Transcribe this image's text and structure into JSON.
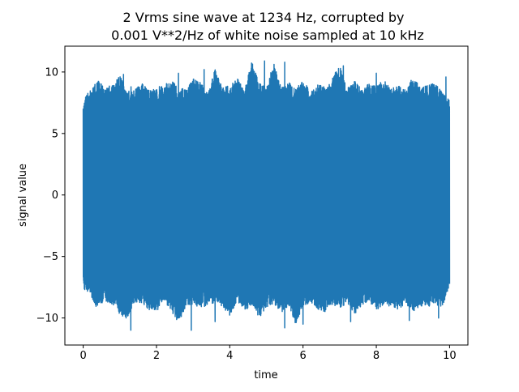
{
  "chart_data": {
    "type": "line",
    "title_line1": "2 Vrms sine wave at 1234 Hz, corrupted by",
    "title_line2": "0.001 V**2/Hz of white noise sampled at 10 kHz",
    "xlabel": "time",
    "ylabel": "signal value",
    "xlim": [
      -0.5,
      10.5
    ],
    "ylim": [
      -12.2,
      12.1
    ],
    "x_ticks": [
      0,
      2,
      4,
      6,
      8,
      10
    ],
    "x_tick_labels": [
      "0",
      "2",
      "4",
      "6",
      "8",
      "10"
    ],
    "y_ticks": [
      -10,
      -5,
      0,
      5,
      10
    ],
    "y_tick_labels": [
      "−10",
      "−5",
      "0",
      "5",
      "10"
    ],
    "grid": false,
    "legend": "none",
    "line_color": "#1f77b4",
    "series": [
      {
        "x_start": 0,
        "x_end": 10,
        "sample_rate_hz": 10000,
        "sine_amplitude": 2.828,
        "sine_freq_hz": 1234,
        "envelope_upper": [
          7.9,
          8.6,
          9.3,
          8.8,
          8.9,
          9.7,
          8.4,
          8.6,
          9.1,
          8.5,
          8.7,
          9.0,
          9.3,
          8.8,
          8.6,
          9.5,
          9.2,
          8.5,
          10.2,
          8.7,
          8.9,
          9.5,
          8.5,
          10.9,
          9.1,
          8.7,
          10.8,
          8.9,
          9.2,
          8.6,
          9.4,
          8.5,
          9.0,
          8.8,
          9.6,
          10.5,
          8.7,
          9.3,
          8.6,
          9.1,
          8.8,
          9.4,
          8.6,
          9.0,
          8.5,
          9.7,
          8.8,
          8.9,
          9.2,
          8.6,
          7.8
        ],
        "envelope_lower": [
          -7.6,
          -8.1,
          -9.4,
          -8.6,
          -8.9,
          -9.7,
          -10.1,
          -8.7,
          -8.8,
          -9.4,
          -9.5,
          -8.6,
          -9.4,
          -10.4,
          -9.1,
          -8.9,
          -9.2,
          -9.0,
          -8.8,
          -9.1,
          -9.8,
          -8.7,
          -9.5,
          -9.0,
          -10.1,
          -9.2,
          -8.8,
          -9.6,
          -9.0,
          -10.5,
          -9.1,
          -8.7,
          -9.3,
          -9.6,
          -8.9,
          -9.2,
          -8.8,
          -9.7,
          -9.0,
          -8.6,
          -9.4,
          -8.9,
          -9.1,
          -9.3,
          -8.8,
          -9.5,
          -9.0,
          -9.2,
          -8.9,
          -9.1,
          -7.5
        ],
        "spikes_high": [
          [
            1.1,
            9.8
          ],
          [
            2.6,
            9.9
          ],
          [
            3.3,
            10.2
          ],
          [
            4.95,
            10.9
          ],
          [
            5.5,
            10.8
          ],
          [
            7.1,
            10.5
          ],
          [
            8.0,
            9.9
          ],
          [
            9.9,
            9.6
          ]
        ],
        "spikes_low": [
          [
            1.3,
            -11.0
          ],
          [
            2.95,
            -11.0
          ],
          [
            3.6,
            -10.3
          ],
          [
            5.5,
            -10.8
          ],
          [
            6.0,
            -10.5
          ],
          [
            7.3,
            -10.3
          ],
          [
            8.9,
            -10.2
          ],
          [
            9.7,
            -10.0
          ]
        ]
      }
    ]
  }
}
